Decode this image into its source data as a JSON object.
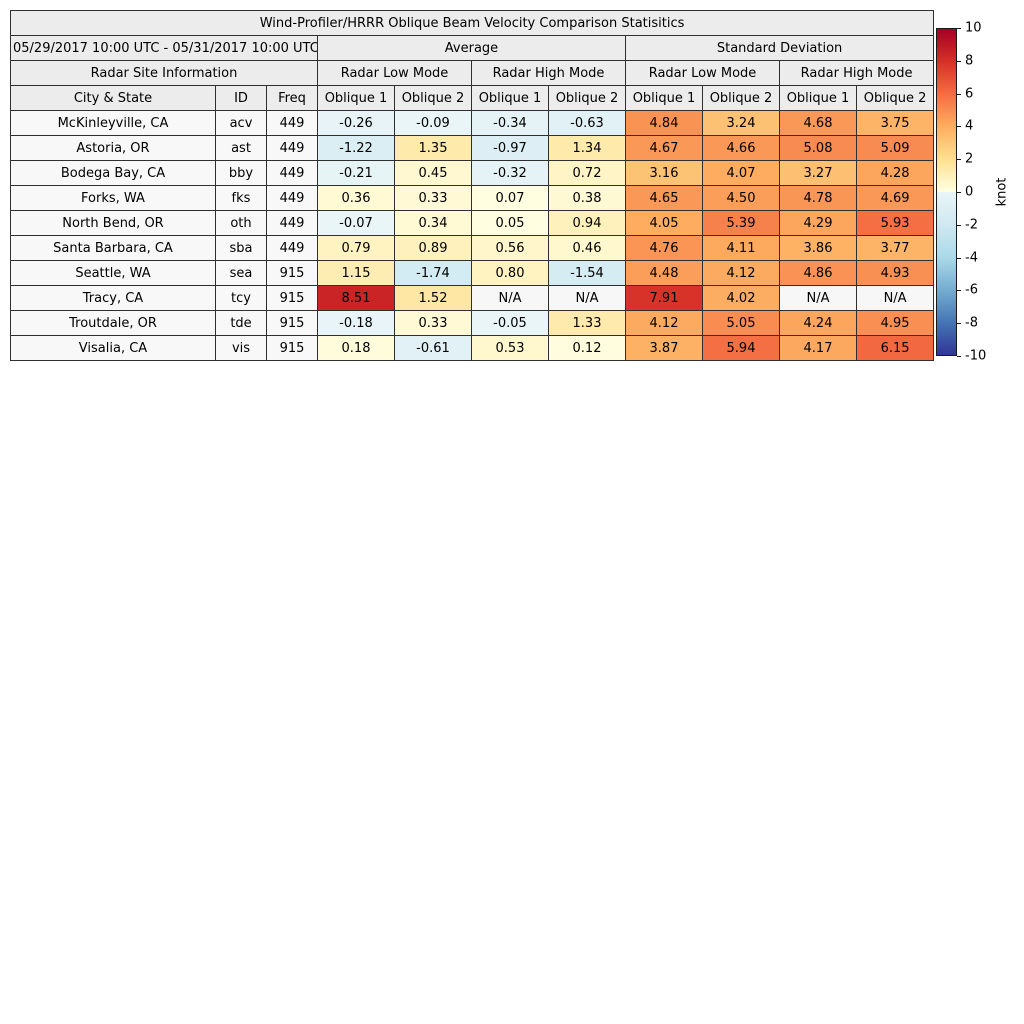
{
  "na_color": "#f7f7f7",
  "chart_data": {
    "type": "heatmap",
    "title": "Wind-Profiler/HRRR Oblique Beam Velocity Comparison Statisitics",
    "subtitle": "05/29/2017 10:00 UTC - 05/31/2017 10:00 UTC",
    "site_info_label": "Radar Site Information",
    "group_labels": [
      "Average",
      "Standard Deviation"
    ],
    "mode_labels": [
      "Radar Low Mode",
      "Radar High Mode"
    ],
    "site_headers": [
      "City & State",
      "ID",
      "Freq"
    ],
    "oblique_labels": [
      "Oblique 1",
      "Oblique 2"
    ],
    "rows": [
      {
        "city": "McKinleyville, CA",
        "id": "acv",
        "freq": "449",
        "values": [
          "-0.26",
          "-0.09",
          "-0.34",
          "-0.63",
          "4.84",
          "3.24",
          "4.68",
          "3.75"
        ]
      },
      {
        "city": "Astoria, OR",
        "id": "ast",
        "freq": "449",
        "values": [
          "-1.22",
          "1.35",
          "-0.97",
          "1.34",
          "4.67",
          "4.66",
          "5.08",
          "5.09"
        ]
      },
      {
        "city": "Bodega Bay, CA",
        "id": "bby",
        "freq": "449",
        "values": [
          "-0.21",
          "0.45",
          "-0.32",
          "0.72",
          "3.16",
          "4.07",
          "3.27",
          "4.28"
        ]
      },
      {
        "city": "Forks, WA",
        "id": "fks",
        "freq": "449",
        "values": [
          "0.36",
          "0.33",
          "0.07",
          "0.38",
          "4.65",
          "4.50",
          "4.78",
          "4.69"
        ]
      },
      {
        "city": "North Bend, OR",
        "id": "oth",
        "freq": "449",
        "values": [
          "-0.07",
          "0.34",
          "0.05",
          "0.94",
          "4.05",
          "5.39",
          "4.29",
          "5.93"
        ]
      },
      {
        "city": "Santa Barbara, CA",
        "id": "sba",
        "freq": "449",
        "values": [
          "0.79",
          "0.89",
          "0.56",
          "0.46",
          "4.76",
          "4.11",
          "3.86",
          "3.77"
        ]
      },
      {
        "city": "Seattle, WA",
        "id": "sea",
        "freq": "915",
        "values": [
          "1.15",
          "-1.74",
          "0.80",
          "-1.54",
          "4.48",
          "4.12",
          "4.86",
          "4.93"
        ]
      },
      {
        "city": "Tracy, CA",
        "id": "tcy",
        "freq": "915",
        "values": [
          "8.51",
          "1.52",
          "N/A",
          "N/A",
          "7.91",
          "4.02",
          "N/A",
          "N/A"
        ]
      },
      {
        "city": "Troutdale, OR",
        "id": "tde",
        "freq": "915",
        "values": [
          "-0.18",
          "0.33",
          "-0.05",
          "1.33",
          "4.12",
          "5.05",
          "4.24",
          "4.95"
        ]
      },
      {
        "city": "Visalia, CA",
        "id": "vis",
        "freq": "915",
        "values": [
          "0.18",
          "-0.61",
          "0.53",
          "0.12",
          "3.87",
          "5.94",
          "4.17",
          "6.15"
        ]
      }
    ],
    "colorbar": {
      "label": "knot",
      "min": -10,
      "max": 10,
      "ticks": [
        "10",
        "8",
        "6",
        "4",
        "2",
        "0",
        "-2",
        "-4",
        "-6",
        "-8",
        "-10"
      ],
      "stops": [
        {
          "v": 10,
          "c": "#a50026"
        },
        {
          "v": 8,
          "c": "#d73027"
        },
        {
          "v": 6,
          "c": "#f46d43"
        },
        {
          "v": 4,
          "c": "#fdae61"
        },
        {
          "v": 2,
          "c": "#fee090"
        },
        {
          "v": 0.01,
          "c": "#ffffe2"
        },
        {
          "v": -0.01,
          "c": "#eaf5f7"
        },
        {
          "v": -2,
          "c": "#d0e9f2"
        },
        {
          "v": -4,
          "c": "#abd9e9"
        },
        {
          "v": -6,
          "c": "#74add1"
        },
        {
          "v": -8,
          "c": "#4575b4"
        },
        {
          "v": -10,
          "c": "#313695"
        }
      ]
    }
  }
}
